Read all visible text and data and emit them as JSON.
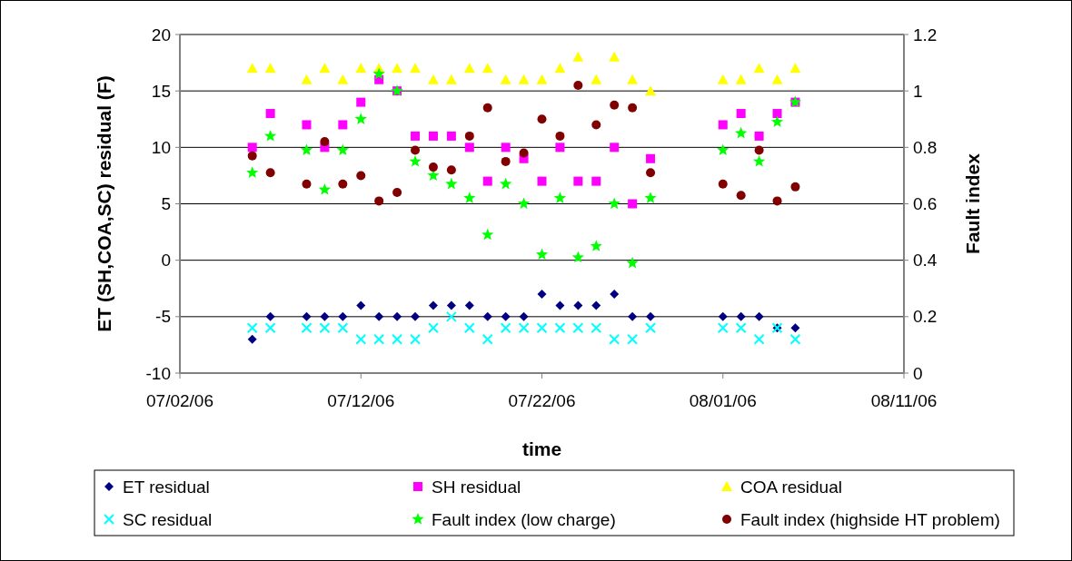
{
  "chart_data": {
    "type": "scatter",
    "xlabel": "time",
    "ylabel": "ET (SH,COA,SC) residual (F)",
    "y2label": "Fault index",
    "x": [
      "--07-06",
      "--07-07",
      "--07-09",
      "--07-10",
      "--07-11",
      "--07-12",
      "--07-13",
      "--07-14",
      "--07-15",
      "--07-16",
      "--07-17",
      "--07-18",
      "--07-19",
      "--07-20",
      "--07-21",
      "--07-22",
      "--07-23",
      "--07-24",
      "--07-25",
      "--07-26",
      "--07-27",
      "--07-28",
      "--08-01",
      "--08-02",
      "--08-03",
      "--08-04",
      "--08-05"
    ],
    "series": [
      {
        "name": "ET residual",
        "color": "#000080",
        "marker": "diamond",
        "values": [
          -7,
          -5,
          -5,
          -5,
          -5,
          -4,
          -5,
          -5,
          -5,
          -4,
          -4,
          -4,
          -5,
          -5,
          -5,
          -3,
          -4,
          -4,
          -4,
          -3,
          -5,
          -5,
          -5,
          -5,
          -5,
          -6,
          -6
        ]
      },
      {
        "name": "SH residual",
        "color": "#ff00ff",
        "marker": "square",
        "values": [
          10,
          13,
          12,
          10,
          12,
          14,
          16,
          15,
          11,
          11,
          11,
          10,
          7,
          10,
          9,
          7,
          10,
          7,
          7,
          10,
          5,
          9,
          12,
          13,
          11,
          13,
          14
        ]
      },
      {
        "name": "COA residual",
        "color": "#ffff00",
        "marker": "triangle",
        "values": [
          17,
          17,
          16,
          17,
          16,
          17,
          17,
          17,
          17,
          16,
          16,
          17,
          17,
          16,
          16,
          16,
          17,
          18,
          16,
          18,
          16,
          15,
          16,
          16,
          17,
          16,
          17
        ]
      },
      {
        "name": "SC residual",
        "color": "#00ffff",
        "marker": "cross",
        "values": [
          -6,
          -6,
          -6,
          -6,
          -6,
          -7,
          -7,
          -7,
          -7,
          -6,
          -5,
          -6,
          -7,
          -6,
          -6,
          -6,
          -6,
          -6,
          -6,
          -7,
          -7,
          -6,
          -6,
          -6,
          -7,
          -6,
          -7
        ]
      },
      {
        "name": "Fault  index (low charge)",
        "color": "#00ff00",
        "marker": "star",
        "axis": "y2",
        "values": [
          0.71,
          0.84,
          0.79,
          0.65,
          0.79,
          0.9,
          1.06,
          1.0,
          0.75,
          0.7,
          0.67,
          0.62,
          0.49,
          0.67,
          0.6,
          0.42,
          0.62,
          0.41,
          0.45,
          0.6,
          0.39,
          0.62,
          0.79,
          0.85,
          0.75,
          0.89,
          0.96
        ]
      },
      {
        "name": "Fault index (highside HT problem)",
        "color": "#800000",
        "marker": "circle",
        "axis": "y2",
        "values": [
          0.77,
          0.71,
          0.67,
          0.82,
          0.67,
          0.7,
          0.61,
          0.64,
          0.79,
          0.73,
          0.72,
          0.84,
          0.94,
          0.75,
          0.78,
          0.9,
          0.84,
          1.02,
          0.88,
          0.95,
          0.94,
          0.71,
          0.67,
          0.63,
          0.79,
          0.61,
          0.66
        ]
      }
    ],
    "xlim": [
      "--07-02",
      "--08-11"
    ],
    "xticks": [
      {
        "value": "--07-02",
        "label": "07/02/06"
      },
      {
        "value": "--07-12",
        "label": "07/12/06"
      },
      {
        "value": "--07-22",
        "label": "07/22/06"
      },
      {
        "value": "--08-01",
        "label": "08/01/06"
      },
      {
        "value": "--08-11",
        "label": "08/11/06"
      }
    ],
    "ylim": [
      -10,
      20
    ],
    "yticks": [
      -10,
      -5,
      0,
      5,
      10,
      15,
      20
    ],
    "y2lim": [
      0,
      1.2
    ],
    "y2ticks": [
      0,
      0.2,
      0.4,
      0.6,
      0.8,
      1,
      1.2
    ],
    "grid": "y",
    "legend": "bottom"
  }
}
